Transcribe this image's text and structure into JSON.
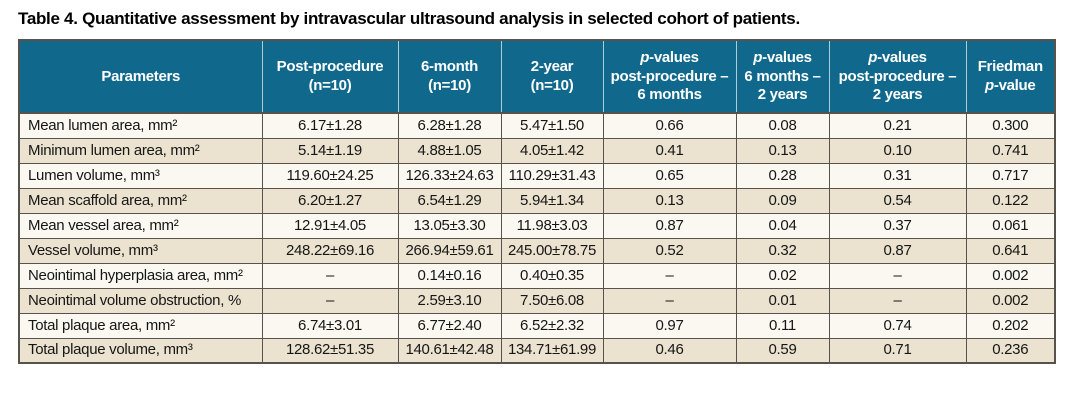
{
  "title": "Table 4. Quantitative assessment by intravascular ultrasound analysis in selected cohort of patients.",
  "colors": {
    "header_bg": "#10698C",
    "row_odd": "#FBF8F1",
    "row_even": "#EBE3CF",
    "border_dark": "#55534C",
    "header_divider": "#AECBD6"
  },
  "table": {
    "columns": [
      {
        "label": "Parameters"
      },
      {
        "line1": "Post-procedure",
        "line2": "(n=10)"
      },
      {
        "line1": "6-month",
        "line2": "(n=10)"
      },
      {
        "line1": "2-year",
        "line2": "(n=10)"
      },
      {
        "p": "p",
        "line1_rest": "-values",
        "line2": "post-procedure –",
        "line3": "6 months"
      },
      {
        "p": "p",
        "line1_rest": "-values",
        "line2": "6 months –",
        "line3": "2 years"
      },
      {
        "p": "p",
        "line1_rest": "-values",
        "line2": "post-procedure –",
        "line3": "2 years"
      },
      {
        "line1": "Friedman",
        "p": "p",
        "line2_rest": "-value"
      }
    ],
    "rows": [
      [
        "Mean lumen area, mm²",
        "6.17±1.28",
        "6.28±1.28",
        "5.47±1.50",
        "0.66",
        "0.08",
        "0.21",
        "0.300"
      ],
      [
        "Minimum lumen area, mm²",
        "5.14±1.19",
        "4.88±1.05",
        "4.05±1.42",
        "0.41",
        "0.13",
        "0.10",
        "0.741"
      ],
      [
        "Lumen volume, mm³",
        "119.60±24.25",
        "126.33±24.63",
        "110.29±31.43",
        "0.65",
        "0.28",
        "0.31",
        "0.717"
      ],
      [
        "Mean scaffold area, mm²",
        "6.20±1.27",
        "6.54±1.29",
        "5.94±1.34",
        "0.13",
        "0.09",
        "0.54",
        "0.122"
      ],
      [
        "Mean vessel area, mm²",
        "12.91±4.05",
        "13.05±3.30",
        "11.98±3.03",
        "0.87",
        "0.04",
        "0.37",
        "0.061"
      ],
      [
        "Vessel volume, mm³",
        "248.22±69.16",
        "266.94±59.61",
        "245.00±78.75",
        "0.52",
        "0.32",
        "0.87",
        "0.641"
      ],
      [
        "Neointimal hyperplasia area, mm²",
        "–",
        "0.14±0.16",
        "0.40±0.35",
        "–",
        "0.02",
        "–",
        "0.002"
      ],
      [
        "Neointimal volume obstruction, %",
        "–",
        "2.59±3.10",
        "7.50±6.08",
        "–",
        "0.01",
        "–",
        "0.002"
      ],
      [
        "Total plaque area, mm²",
        "6.74±3.01",
        "6.77±2.40",
        "6.52±2.32",
        "0.97",
        "0.11",
        "0.74",
        "0.202"
      ],
      [
        "Total plaque volume, mm³",
        "128.62±51.35",
        "140.61±42.48",
        "134.71±61.99",
        "0.46",
        "0.59",
        "0.71",
        "0.236"
      ]
    ]
  }
}
